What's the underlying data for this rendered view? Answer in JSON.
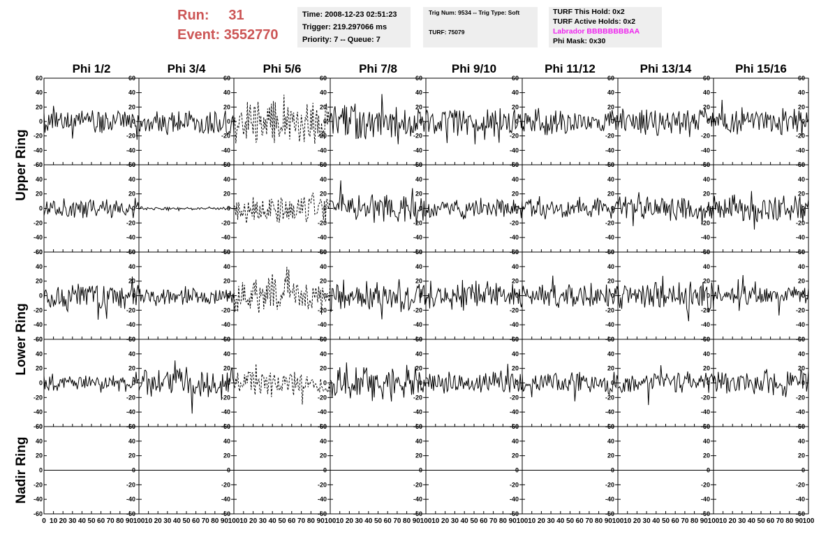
{
  "header": {
    "run_label": "Run:",
    "run_value": "31",
    "event_label": "Event:",
    "event_value": "3552770"
  },
  "info_box_1": {
    "time": "Time: 2008-12-23 02:51:23",
    "trigger": "Trigger: 219.297066 ms",
    "priority": "Priority: 7 -- Queue: 7"
  },
  "info_box_2": {
    "trig": "Trig Num: 9534 -- Trig Type: Soft",
    "turf": "TURF: 75079"
  },
  "info_box_3": {
    "this_hold": "TURF This Hold: 0x2",
    "active_holds": "TURF Active Holds: 0x2",
    "labrador": "Labrador BBBBBBBBAA",
    "phi_mask": "Phi Mask: 0x30"
  },
  "colors": {
    "header_red": "#cc5555",
    "labrador_magenta": "#ee22ee",
    "box_bg": "#eeeeee"
  },
  "chart_data": {
    "type": "line",
    "columns": [
      "Phi 1/2",
      "Phi 3/4",
      "Phi 5/6",
      "Phi 7/8",
      "Phi 9/10",
      "Phi 11/12",
      "Phi 13/14",
      "Phi 15/16"
    ],
    "rows": [
      "Upper Ring",
      "Upper Ring",
      "Lower Ring",
      "Lower Ring",
      "Nadir Ring"
    ],
    "row_labels": [
      "Upper Ring",
      "Lower Ring",
      "Nadir Ring"
    ],
    "xlim": [
      0,
      100
    ],
    "ylim": [
      -60,
      60
    ],
    "yticks": [
      -60,
      -40,
      -20,
      0,
      20,
      40,
      60
    ],
    "xticks": [
      0,
      10,
      20,
      30,
      40,
      50,
      60,
      70,
      80,
      90,
      100
    ],
    "samples": 100,
    "dashed_column": "Phi 5/6",
    "panels": [
      [
        {
          "amp": 13,
          "seed": 11
        },
        {
          "amp": 14,
          "seed": 12
        },
        {
          "amp": 25,
          "seed": 13
        },
        {
          "amp": 19,
          "seed": 14
        },
        {
          "amp": 16,
          "seed": 15
        },
        {
          "amp": 14,
          "seed": 16
        },
        {
          "amp": 15,
          "seed": 17
        },
        {
          "amp": 14,
          "seed": 18
        }
      ],
      [
        {
          "amp": 11,
          "seed": 21
        },
        {
          "amp": 1.5,
          "seed": 22
        },
        {
          "amp": 16,
          "seed": 23
        },
        {
          "amp": 16,
          "seed": 24
        },
        {
          "amp": 12,
          "seed": 25
        },
        {
          "amp": 12,
          "seed": 26
        },
        {
          "amp": 13,
          "seed": 27
        },
        {
          "amp": 15,
          "seed": 28
        }
      ],
      [
        {
          "amp": 14,
          "seed": 31
        },
        {
          "amp": 11,
          "seed": 32
        },
        {
          "amp": 21,
          "seed": 33
        },
        {
          "amp": 17,
          "seed": 34
        },
        {
          "amp": 16,
          "seed": 35
        },
        {
          "amp": 13,
          "seed": 36
        },
        {
          "amp": 16,
          "seed": 37
        },
        {
          "amp": 11,
          "seed": 38
        }
      ],
      [
        {
          "amp": 10,
          "seed": 41
        },
        {
          "amp": 17,
          "seed": 42
        },
        {
          "amp": 14,
          "seed": 43
        },
        {
          "amp": 18,
          "seed": 44
        },
        {
          "amp": 13,
          "seed": 45
        },
        {
          "amp": 12,
          "seed": 46
        },
        {
          "amp": 12,
          "seed": 47
        },
        {
          "amp": 15,
          "seed": 48
        }
      ],
      [
        {
          "amp": 0,
          "seed": 51
        },
        {
          "amp": 0,
          "seed": 52
        },
        {
          "amp": 0,
          "seed": 53
        },
        {
          "amp": 0,
          "seed": 54
        },
        {
          "amp": 0,
          "seed": 55
        },
        {
          "amp": 0,
          "seed": 56
        },
        {
          "amp": 0,
          "seed": 57
        },
        {
          "amp": 0,
          "seed": 58
        }
      ]
    ]
  }
}
